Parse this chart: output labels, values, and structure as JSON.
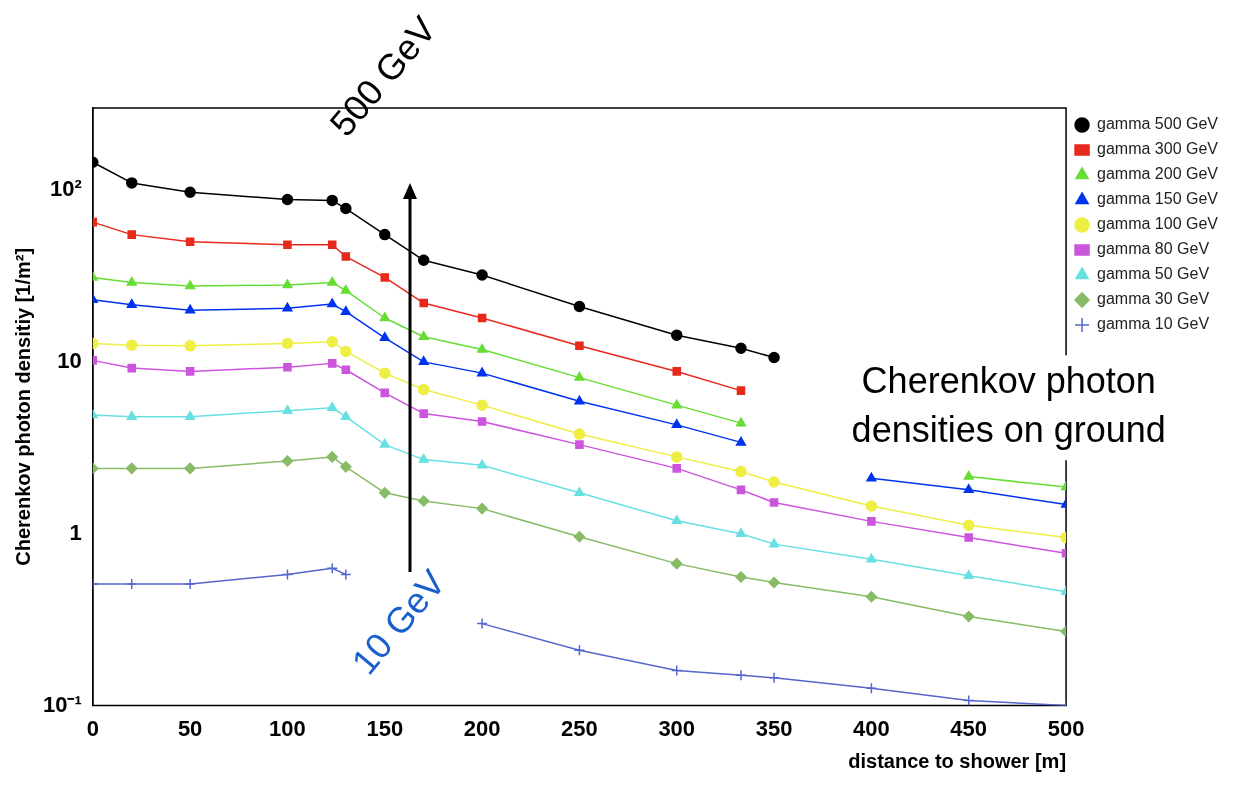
{
  "chart_data": {
    "type": "line",
    "xlabel": "distance to shower [m]",
    "ylabel": "Cherenkov photon densitiy [1/m²]",
    "log": "y",
    "grid": false,
    "legend": "top right",
    "xlim": [
      0,
      500
    ],
    "xticks": [
      0,
      50,
      100,
      150,
      200,
      250,
      300,
      350,
      400,
      450,
      500
    ],
    "ylim": [
      0.1,
      300
    ],
    "yticks": [
      {
        "value": 0.1,
        "label": "10⁻¹"
      },
      1,
      10,
      {
        "value": 100,
        "label": "10²"
      }
    ],
    "annotations": [
      "Cherenkov photon densities on ground",
      "500 GeV",
      "10 GeV"
    ],
    "x": [
      0,
      20,
      50,
      100,
      123,
      130,
      150,
      170,
      200,
      250,
      300,
      333,
      350,
      400,
      450,
      500
    ],
    "series": [
      {
        "name": "gamma 500 GeV",
        "color": "#000000",
        "marker": "circle",
        "values": [
          145,
          110,
          97,
          88,
          87,
          78,
          55,
          39,
          32,
          21,
          14.3,
          12,
          10.6,
          null,
          null,
          null
        ]
      },
      {
        "name": "gamma 300 GeV",
        "color": "#e8291c",
        "marker": "square",
        "values": [
          65,
          55,
          50,
          48,
          48,
          41,
          31,
          22,
          18,
          12.4,
          8.8,
          6.8,
          null,
          null,
          null,
          null
        ]
      },
      {
        "name": "gamma 200 GeV",
        "color": "#66dd33",
        "marker": "triangle",
        "values": [
          31,
          29,
          27.6,
          28,
          29,
          26,
          18,
          14,
          11.8,
          8.1,
          5.6,
          4.4,
          null,
          null,
          2.15,
          1.87
        ]
      },
      {
        "name": "gamma 150 GeV",
        "color": "#0033ee",
        "marker": "triangle",
        "values": [
          23,
          21.5,
          20,
          20.5,
          21.7,
          19.6,
          13.8,
          10,
          8.6,
          5.9,
          4.3,
          3.4,
          null,
          2.1,
          1.8,
          1.48
        ]
      },
      {
        "name": "gamma 100 GeV",
        "color": "#eeee44",
        "marker": "circle",
        "values": [
          12.8,
          12.5,
          12.4,
          12.8,
          13.1,
          11.5,
          8.6,
          6.9,
          5.6,
          3.8,
          2.8,
          2.3,
          2.0,
          1.45,
          1.12,
          0.95
        ]
      },
      {
        "name": "gamma 80 GeV",
        "color": "#cc55dd",
        "marker": "square",
        "values": [
          10.2,
          9.2,
          8.8,
          9.3,
          9.8,
          9.0,
          6.6,
          5.0,
          4.5,
          3.3,
          2.4,
          1.8,
          1.52,
          1.18,
          0.95,
          0.77
        ]
      },
      {
        "name": "gamma 50 GeV",
        "color": "#66e0e0",
        "marker": "triangle",
        "values": [
          4.9,
          4.8,
          4.8,
          5.2,
          5.4,
          4.8,
          3.3,
          2.7,
          2.5,
          1.73,
          1.19,
          1.0,
          0.87,
          0.71,
          0.57,
          0.46
        ]
      },
      {
        "name": "gamma 30 GeV",
        "color": "#88bb66",
        "marker": "diamond",
        "values": [
          2.4,
          2.4,
          2.4,
          2.65,
          2.8,
          2.45,
          1.73,
          1.55,
          1.4,
          0.96,
          0.67,
          0.56,
          0.52,
          0.43,
          0.33,
          0.27
        ]
      },
      {
        "name": "gamma 10 GeV",
        "color": "#5566cc",
        "marker": "cross",
        "values": [
          0.51,
          0.51,
          0.51,
          0.58,
          0.63,
          0.58,
          null,
          null,
          0.3,
          0.21,
          0.16,
          0.15,
          0.145,
          0.126,
          0.107,
          0.1
        ]
      }
    ]
  }
}
